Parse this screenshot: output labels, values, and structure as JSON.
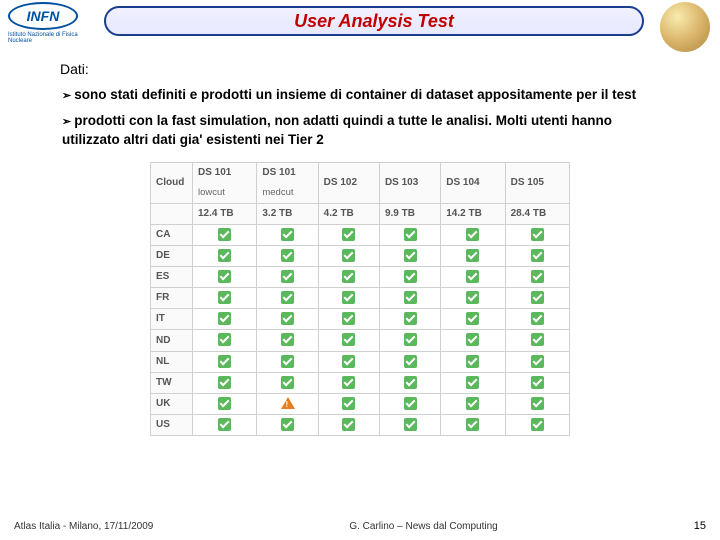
{
  "header": {
    "logo_text": "INFN",
    "logo_subtitle": "Istituto Nazionale di Fisica Nucleare",
    "title": "User Analysis Test"
  },
  "content": {
    "dati_label": "Dati:",
    "bullet1": "sono stati definiti e prodotti un insieme di container di dataset appositamente per il test",
    "bullet2": "prodotti con la fast simulation, non adatti quindi a tutte le analisi. Molti utenti hanno utilizzato altri dati gia' esistenti nei Tier 2"
  },
  "table": {
    "row_header": "Cloud",
    "cols": [
      {
        "top": "DS 101",
        "sub": "lowcut",
        "size": "12.4 TB"
      },
      {
        "top": "DS 101",
        "sub": "medcut",
        "size": "3.2 TB"
      },
      {
        "top": "DS 102",
        "sub": "",
        "size": "4.2 TB"
      },
      {
        "top": "DS 103",
        "sub": "",
        "size": "9.9 TB"
      },
      {
        "top": "DS 104",
        "sub": "",
        "size": "14.2 TB"
      },
      {
        "top": "DS 105",
        "sub": "",
        "size": "28.4 TB"
      }
    ],
    "rows": [
      {
        "label": "CA",
        "cells": [
          "check",
          "check",
          "check",
          "check",
          "check",
          "check"
        ]
      },
      {
        "label": "DE",
        "cells": [
          "check",
          "check",
          "check",
          "check",
          "check",
          "check"
        ]
      },
      {
        "label": "ES",
        "cells": [
          "check",
          "check",
          "check",
          "check",
          "check",
          "check"
        ]
      },
      {
        "label": "FR",
        "cells": [
          "check",
          "check",
          "check",
          "check",
          "check",
          "check"
        ]
      },
      {
        "label": "IT",
        "cells": [
          "check",
          "check",
          "check",
          "check",
          "check",
          "check"
        ]
      },
      {
        "label": "ND",
        "cells": [
          "check",
          "check",
          "check",
          "check",
          "check",
          "check"
        ]
      },
      {
        "label": "NL",
        "cells": [
          "check",
          "check",
          "check",
          "check",
          "check",
          "check"
        ]
      },
      {
        "label": "TW",
        "cells": [
          "check",
          "check",
          "check",
          "check",
          "check",
          "check"
        ]
      },
      {
        "label": "UK",
        "cells": [
          "check",
          "warn",
          "check",
          "check",
          "check",
          "check"
        ]
      },
      {
        "label": "US",
        "cells": [
          "check",
          "check",
          "check",
          "check",
          "check",
          "check"
        ]
      }
    ]
  },
  "footer": {
    "left": "Atlas Italia - Milano, 17/11/2009",
    "center": "G. Carlino – News dal Computing",
    "page": "15"
  },
  "colors": {
    "title_border": "#1a3d8f",
    "title_text": "#c00000",
    "check_bg": "#5cb85c",
    "warn_bg": "#e67e22",
    "table_border": "#d0d0d0"
  }
}
